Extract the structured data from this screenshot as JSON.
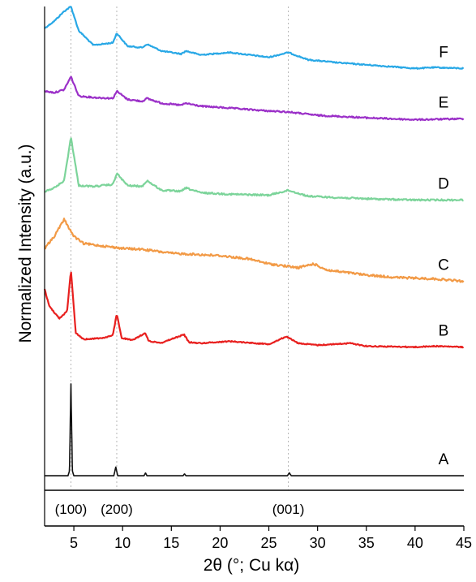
{
  "chart_data": {
    "type": "line",
    "xlabel": "2θ (°; Cu kα)",
    "ylabel": "Normalized Intensity (a.u.)",
    "xlim": [
      2,
      45
    ],
    "xticks": [
      5,
      10,
      15,
      20,
      25,
      30,
      35,
      40,
      45
    ],
    "grid": false,
    "guide_lines_x": [
      4.7,
      9.4,
      27.0
    ],
    "peak_labels": [
      {
        "text": "(100)",
        "x": 4.7
      },
      {
        "text": "(200)",
        "x": 9.4
      },
      {
        "text": "(001)",
        "x": 27.0
      }
    ],
    "series": [
      {
        "name": "F",
        "color": "#29a8e6",
        "x": [
          2.0,
          3.0,
          4.0,
          4.7,
          5.5,
          7.0,
          9.0,
          9.4,
          10.5,
          12.0,
          12.5,
          14.0,
          16.0,
          16.5,
          18.0,
          21.0,
          25.0,
          27.0,
          29.0,
          32.0,
          36.0,
          40.0,
          42.0,
          45.0
        ],
        "values": [
          0.955,
          0.97,
          0.99,
          1.0,
          0.95,
          0.92,
          0.925,
          0.945,
          0.918,
          0.915,
          0.922,
          0.908,
          0.902,
          0.908,
          0.9,
          0.905,
          0.895,
          0.905,
          0.89,
          0.884,
          0.878,
          0.872,
          0.874,
          0.872
        ]
      },
      {
        "name": "E",
        "color": "#9b30c8",
        "x": [
          2.0,
          3.0,
          4.0,
          4.7,
          5.5,
          7.0,
          9.0,
          9.4,
          10.5,
          12.0,
          12.5,
          14.0,
          16.0,
          16.5,
          18.0,
          21.0,
          25.0,
          27.0,
          30.0,
          35.0,
          40.0,
          45.0
        ],
        "values": [
          0.825,
          0.822,
          0.828,
          0.855,
          0.815,
          0.812,
          0.81,
          0.825,
          0.808,
          0.804,
          0.81,
          0.8,
          0.796,
          0.8,
          0.794,
          0.79,
          0.784,
          0.782,
          0.775,
          0.77,
          0.766,
          0.768
        ]
      },
      {
        "name": "D",
        "color": "#7cd49a",
        "x": [
          2.0,
          3.0,
          4.0,
          4.7,
          5.5,
          7.0,
          9.0,
          9.4,
          10.5,
          12.0,
          12.5,
          14.0,
          16.0,
          16.5,
          18.0,
          21.0,
          25.0,
          27.0,
          29.0,
          32.0,
          36.0,
          40.0,
          45.0
        ],
        "values": [
          0.618,
          0.625,
          0.64,
          0.73,
          0.63,
          0.628,
          0.632,
          0.655,
          0.63,
          0.628,
          0.64,
          0.62,
          0.618,
          0.625,
          0.615,
          0.612,
          0.61,
          0.62,
          0.608,
          0.605,
          0.602,
          0.6,
          0.6
        ]
      },
      {
        "name": "C",
        "color": "#f29a46",
        "x": [
          2.0,
          3.0,
          4.0,
          5.0,
          6.0,
          8.0,
          10.0,
          12.0,
          15.0,
          20.0,
          23.0,
          25.0,
          28.0,
          29.6,
          31.0,
          35.0,
          38.0,
          42.0,
          45.0
        ],
        "values": [
          0.5,
          0.525,
          0.56,
          0.525,
          0.51,
          0.505,
          0.5,
          0.498,
          0.49,
          0.485,
          0.478,
          0.468,
          0.46,
          0.468,
          0.455,
          0.445,
          0.44,
          0.437,
          0.432
        ]
      },
      {
        "name": "B",
        "color": "#e8201f",
        "x": [
          2.0,
          2.5,
          3.5,
          4.3,
          4.7,
          5.2,
          6.0,
          8.0,
          9.0,
          9.4,
          9.9,
          11.0,
          12.3,
          12.7,
          14.0,
          16.3,
          16.8,
          18.0,
          21.0,
          25.0,
          26.8,
          28.0,
          30.0,
          33.4,
          35.0,
          40.0,
          42.0,
          45.0
        ],
        "values": [
          0.415,
          0.38,
          0.355,
          0.37,
          0.455,
          0.325,
          0.312,
          0.315,
          0.32,
          0.365,
          0.315,
          0.31,
          0.325,
          0.308,
          0.305,
          0.322,
          0.306,
          0.304,
          0.308,
          0.302,
          0.318,
          0.304,
          0.3,
          0.304,
          0.298,
          0.296,
          0.298,
          0.296
        ]
      },
      {
        "name": "A",
        "color": "#111111",
        "x": [
          2.0,
          4.4,
          4.55,
          4.7,
          4.85,
          5.0,
          9.1,
          9.3,
          9.5,
          9.7,
          12.2,
          12.35,
          12.5,
          16.2,
          16.35,
          16.5,
          26.9,
          27.1,
          27.3,
          45.0
        ],
        "values": [
          0.03,
          0.03,
          0.04,
          0.22,
          0.04,
          0.03,
          0.03,
          0.048,
          0.03,
          0.03,
          0.03,
          0.036,
          0.03,
          0.03,
          0.034,
          0.03,
          0.03,
          0.036,
          0.03,
          0.03
        ]
      }
    ]
  }
}
